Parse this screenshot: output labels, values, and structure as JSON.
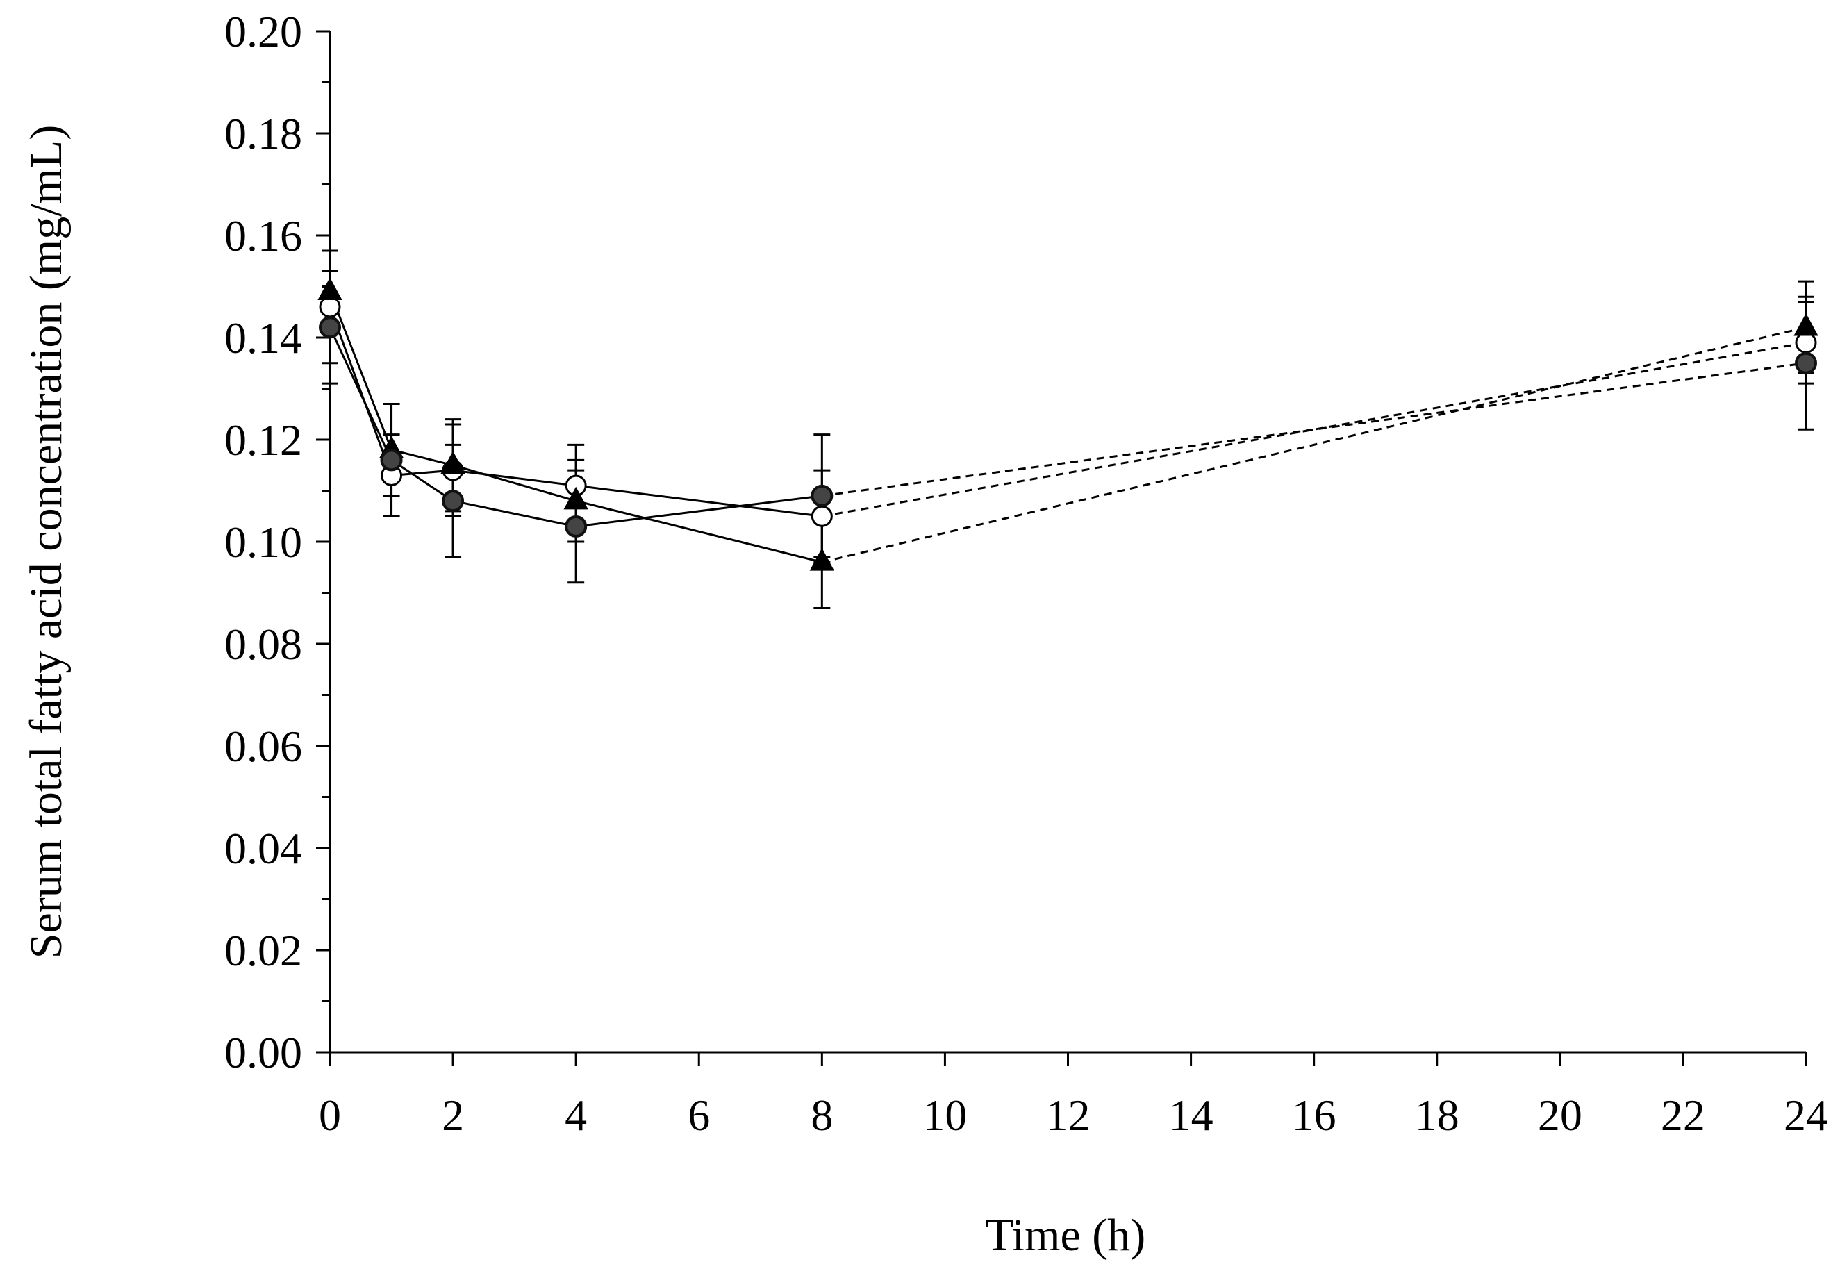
{
  "chart_data": {
    "type": "line",
    "title": "",
    "xlabel": "Time (h)",
    "ylabel": "Serum total fatty acid concentration (mg/mL)",
    "xlim": [
      0,
      24
    ],
    "ylim": [
      0.0,
      0.2
    ],
    "xticks": [
      0,
      2,
      4,
      6,
      8,
      10,
      12,
      14,
      16,
      18,
      20,
      22,
      24
    ],
    "xtick_labels": [
      "0",
      "2",
      "4",
      "6",
      "8",
      "10",
      "12",
      "14",
      "16",
      "18",
      "20",
      "22",
      "24"
    ],
    "yticks": [
      0.0,
      0.02,
      0.04,
      0.06,
      0.08,
      0.1,
      0.12,
      0.14,
      0.16,
      0.18,
      0.2
    ],
    "ytick_labels": [
      "0.00",
      "0.02",
      "0.04",
      "0.06",
      "0.08",
      "0.10",
      "0.12",
      "0.14",
      "0.16",
      "0.18",
      "0.20"
    ],
    "x": [
      0,
      1,
      2,
      4,
      8,
      24
    ],
    "solid_until_x": 8,
    "dashed_segment": "8 to 24",
    "grid": false,
    "series": [
      {
        "name": "open-circle",
        "marker": "open-circle",
        "color": "#000000",
        "fill": "#ffffff",
        "values": [
          0.146,
          0.113,
          0.114,
          0.111,
          0.105,
          0.139
        ],
        "errors": [
          0.011,
          0.008,
          0.009,
          0.008,
          0.009,
          0.008
        ]
      },
      {
        "name": "filled-triangle",
        "marker": "triangle",
        "color": "#000000",
        "fill": "#000000",
        "values": [
          0.149,
          0.118,
          0.115,
          0.108,
          0.096,
          0.142
        ],
        "errors": [
          0.008,
          0.009,
          0.009,
          0.008,
          0.009,
          0.009
        ]
      },
      {
        "name": "filled-circle",
        "marker": "gray-circle",
        "color": "#000000",
        "fill": "#444444",
        "values": [
          0.142,
          0.116,
          0.108,
          0.103,
          0.109,
          0.135
        ],
        "errors": [
          0.011,
          0.011,
          0.011,
          0.011,
          0.012,
          0.013
        ]
      }
    ]
  }
}
